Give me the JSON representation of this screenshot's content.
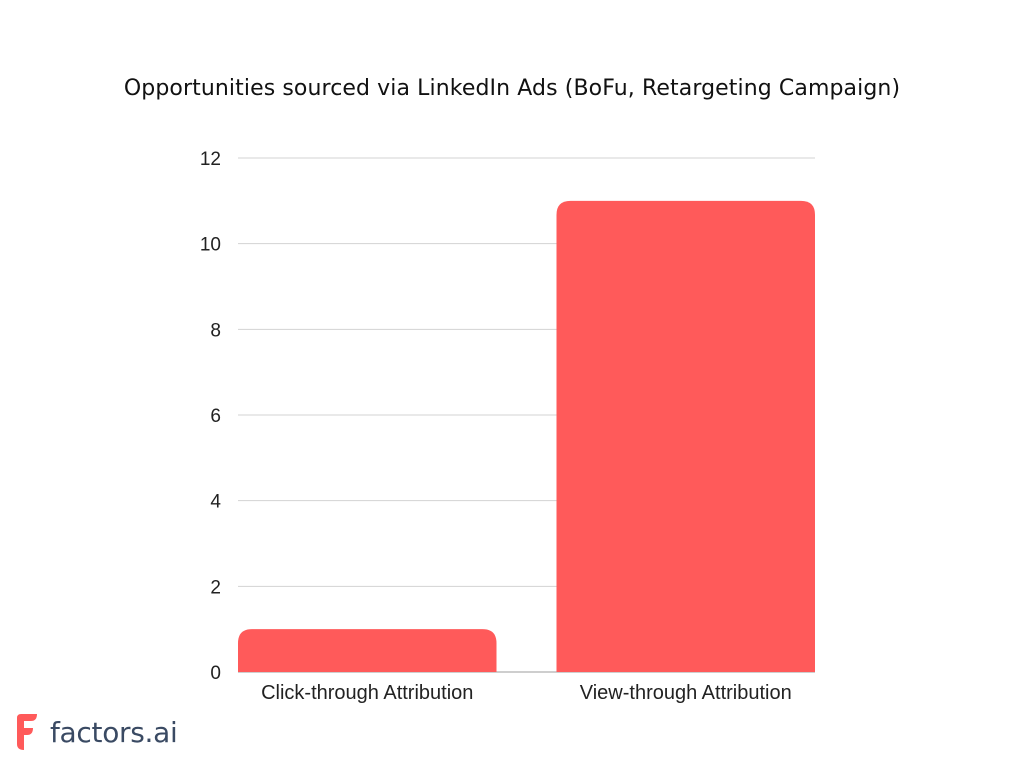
{
  "chart_data": {
    "type": "bar",
    "title": "Opportunities sourced via LinkedIn Ads (BoFu, Retargeting Campaign)",
    "categories": [
      "Click-through Attribution",
      "View-through Attribution"
    ],
    "values": [
      1,
      11
    ],
    "xlabel": "",
    "ylabel": "",
    "ylim": [
      0,
      12
    ],
    "yticks": [
      "0",
      "2",
      "4",
      "6",
      "8",
      "10",
      "12"
    ],
    "grid": true,
    "legend": "none",
    "bar_color": "#ff5a5a"
  },
  "brand": {
    "logo_text": "factors.ai",
    "logo_color": "#ff5a5a",
    "text_color": "#3a4a63"
  }
}
